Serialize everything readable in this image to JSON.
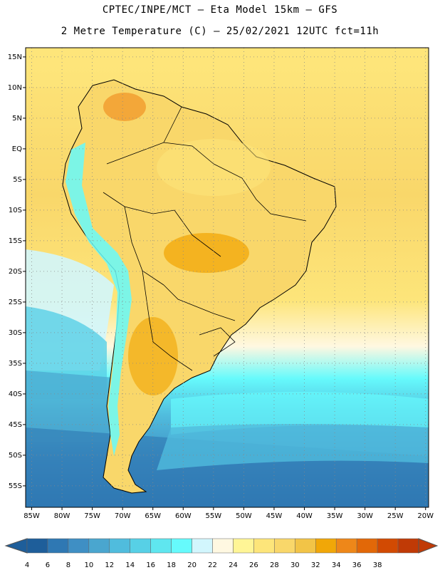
{
  "header": {
    "line1": "CPTEC/INPE/MCT –  Eta Model 15km – GFS",
    "line2": "2 Metre Temperature (C) – 25/02/2021 12UTC fct=11h"
  },
  "map": {
    "lon_range": [
      -86,
      -19.5
    ],
    "lat_range": [
      -58.5,
      16.5
    ],
    "lon_ticks": [
      -85,
      -80,
      -75,
      -70,
      -65,
      -60,
      -55,
      -50,
      -45,
      -40,
      -35,
      -30,
      -25,
      -20
    ],
    "lon_tick_labels": [
      "85W",
      "80W",
      "75W",
      "70W",
      "65W",
      "60W",
      "55W",
      "50W",
      "45W",
      "40W",
      "35W",
      "30W",
      "25W",
      "20W"
    ],
    "lat_ticks": [
      15,
      10,
      5,
      0,
      -5,
      -10,
      -15,
      -20,
      -25,
      -30,
      -35,
      -40,
      -45,
      -50,
      -55
    ],
    "lat_tick_labels": [
      "15N",
      "10N",
      "5N",
      "EQ",
      "5S",
      "10S",
      "15S",
      "20S",
      "25S",
      "30S",
      "35S",
      "40S",
      "45S",
      "50S",
      "55S"
    ],
    "grid": "dotted"
  },
  "colorbar": {
    "labels": [
      "4",
      "6",
      "8",
      "10",
      "12",
      "14",
      "16",
      "18",
      "20",
      "22",
      "24",
      "26",
      "28",
      "30",
      "32",
      "34",
      "36",
      "38"
    ],
    "colors": [
      "#1e5e9a",
      "#2f78b3",
      "#3f8fc4",
      "#4aa6cf",
      "#50bcdd",
      "#57d0e6",
      "#5fe6ef",
      "#66fafc",
      "#d2f6fd",
      "#fff8e1",
      "#fff596",
      "#fde57a",
      "#f9d76a",
      "#f2c447",
      "#f1a708",
      "#ee8719",
      "#e26808",
      "#d24a02",
      "#c03a06"
    ]
  }
}
